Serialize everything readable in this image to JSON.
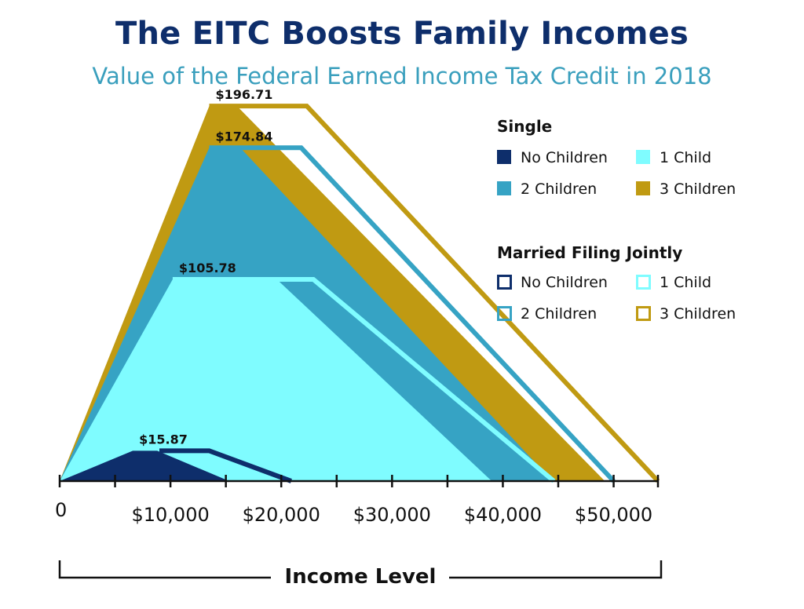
{
  "title": "The EITC Boosts Family Incomes",
  "subtitle": "Value of the Federal Earned Income Tax Credit in 2018",
  "colors": {
    "no_children": "#0e2e6b",
    "one_child": "#7ffcff",
    "two_children": "#36a3c4",
    "three_children": "#c09a12"
  },
  "legend": {
    "single_heading": "Single",
    "married_heading": "Married Filing Jointly",
    "single": [
      {
        "key": "no_children",
        "label": "No Children"
      },
      {
        "key": "one_child",
        "label": "1 Child"
      },
      {
        "key": "two_children",
        "label": "2 Children"
      },
      {
        "key": "three_children",
        "label": "3 Children"
      }
    ],
    "married": [
      {
        "key": "no_children",
        "label": "No Children"
      },
      {
        "key": "one_child",
        "label": "1 Child"
      },
      {
        "key": "two_children",
        "label": "2 Children"
      },
      {
        "key": "three_children",
        "label": "3 Children"
      }
    ]
  },
  "chart_data": {
    "type": "area",
    "title": "The EITC Boosts Family Incomes",
    "subtitle": "Value of the Federal Earned Income Tax Credit in 2018",
    "xlabel": "Income Level",
    "x_ticks": [
      0,
      10000,
      20000,
      30000,
      40000,
      50000
    ],
    "x_tick_labels": [
      "0",
      "$10,000",
      "$20,000",
      "$30,000",
      "$40,000",
      "$50,000"
    ],
    "xlim": [
      0,
      54000
    ],
    "ylim": [
      0,
      205
    ],
    "peak_labels": [
      {
        "label": "$196.71",
        "value": 196.71,
        "x": 13500
      },
      {
        "label": "$174.84",
        "value": 174.84,
        "x": 13500
      },
      {
        "label": "$105.78",
        "value": 105.78,
        "x": 10200
      },
      {
        "label": "$15.87",
        "value": 15.87,
        "x": 6600
      }
    ],
    "series": [
      {
        "name": "3 Children",
        "filing": "Married Filing Jointly",
        "key": "three_children",
        "style": "outline",
        "points": [
          [
            13500,
            196.71
          ],
          [
            22300,
            196.71
          ],
          [
            54000,
            0
          ]
        ]
      },
      {
        "name": "3 Children",
        "filing": "Single",
        "key": "three_children",
        "style": "filled",
        "points": [
          [
            0,
            0
          ],
          [
            13500,
            196.71
          ],
          [
            16000,
            196.71
          ],
          [
            49200,
            0
          ]
        ]
      },
      {
        "name": "2 Children",
        "filing": "Married Filing Jointly",
        "key": "two_children",
        "style": "outline",
        "points": [
          [
            13500,
            174.84
          ],
          [
            21800,
            174.84
          ],
          [
            50000,
            0
          ]
        ]
      },
      {
        "name": "2 Children",
        "filing": "Single",
        "key": "two_children",
        "style": "filled",
        "points": [
          [
            0,
            0
          ],
          [
            13500,
            174.84
          ],
          [
            16300,
            174.84
          ],
          [
            44500,
            0
          ]
        ]
      },
      {
        "name": "1 Child",
        "filing": "Married Filing Jointly",
        "key": "one_child",
        "style": "outline",
        "points": [
          [
            10200,
            105.78
          ],
          [
            22900,
            105.78
          ],
          [
            44600,
            0
          ]
        ]
      },
      {
        "name": "1 Child",
        "filing": "Single",
        "key": "one_child",
        "style": "filled",
        "points": [
          [
            0,
            0
          ],
          [
            10200,
            105.78
          ],
          [
            19600,
            105.78
          ],
          [
            39000,
            0
          ]
        ]
      },
      {
        "name": "No Children",
        "filing": "Married Filing Jointly",
        "key": "no_children",
        "style": "outline",
        "points": [
          [
            9000,
            15.87
          ],
          [
            13500,
            15.87
          ],
          [
            20900,
            0
          ]
        ]
      },
      {
        "name": "No Children",
        "filing": "Single",
        "key": "no_children",
        "style": "filled",
        "points": [
          [
            0,
            0
          ],
          [
            6600,
            15.87
          ],
          [
            8800,
            15.87
          ],
          [
            15300,
            0
          ]
        ]
      }
    ]
  }
}
